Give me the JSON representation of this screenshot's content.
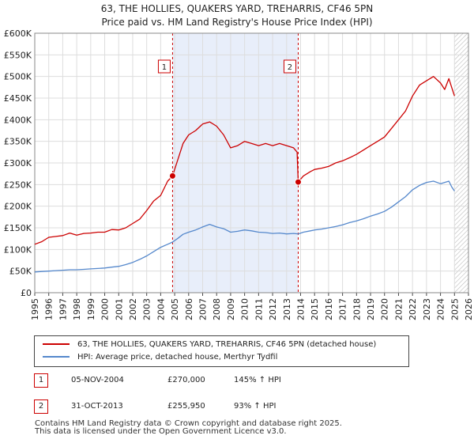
{
  "title": {
    "line1": "63, THE HOLLIES, QUAKERS YARD, TREHARRIS, CF46 5PN",
    "line2": "Price paid vs. HM Land Registry's House Price Index (HPI)"
  },
  "chart_data": {
    "type": "line",
    "xlim": [
      1995,
      2026
    ],
    "ylim": [
      0,
      600000
    ],
    "x_ticks": [
      "1995",
      "1996",
      "1997",
      "1998",
      "1999",
      "2000",
      "2001",
      "2002",
      "2003",
      "2004",
      "2005",
      "2006",
      "2007",
      "2008",
      "2009",
      "2010",
      "2011",
      "2012",
      "2013",
      "2014",
      "2015",
      "2016",
      "2017",
      "2018",
      "2019",
      "2020",
      "2021",
      "2022",
      "2023",
      "2024",
      "2025",
      "2026"
    ],
    "y_ticks": [
      {
        "value": 0,
        "label": "£0"
      },
      {
        "value": 50000,
        "label": "£50K"
      },
      {
        "value": 100000,
        "label": "£100K"
      },
      {
        "value": 150000,
        "label": "£150K"
      },
      {
        "value": 200000,
        "label": "£200K"
      },
      {
        "value": 250000,
        "label": "£250K"
      },
      {
        "value": 300000,
        "label": "£300K"
      },
      {
        "value": 350000,
        "label": "£350K"
      },
      {
        "value": 400000,
        "label": "£400K"
      },
      {
        "value": 450000,
        "label": "£450K"
      },
      {
        "value": 500000,
        "label": "£500K"
      },
      {
        "value": 550000,
        "label": "£550K"
      },
      {
        "value": 600000,
        "label": "£600K"
      }
    ],
    "shaded_period": [
      2004.85,
      2013.83
    ],
    "future_hatch_from": 2025.0,
    "series": [
      {
        "name": "63, THE HOLLIES, QUAKERS YARD, TREHARRIS, CF46 5PN (detached house)",
        "color": "#cc0000",
        "points": [
          [
            1995.0,
            112000
          ],
          [
            1995.5,
            118000
          ],
          [
            1996.0,
            128000
          ],
          [
            1996.5,
            130000
          ],
          [
            1997.0,
            132000
          ],
          [
            1997.5,
            138000
          ],
          [
            1998.0,
            133000
          ],
          [
            1998.5,
            137000
          ],
          [
            1999.0,
            138000
          ],
          [
            1999.5,
            140000
          ],
          [
            2000.0,
            140000
          ],
          [
            2000.5,
            146000
          ],
          [
            2001.0,
            145000
          ],
          [
            2001.5,
            150000
          ],
          [
            2002.0,
            160000
          ],
          [
            2002.5,
            170000
          ],
          [
            2003.0,
            190000
          ],
          [
            2003.5,
            212000
          ],
          [
            2004.0,
            225000
          ],
          [
            2004.5,
            258000
          ],
          [
            2004.85,
            270000
          ],
          [
            2005.2,
            305000
          ],
          [
            2005.6,
            345000
          ],
          [
            2006.0,
            365000
          ],
          [
            2006.5,
            375000
          ],
          [
            2007.0,
            390000
          ],
          [
            2007.5,
            395000
          ],
          [
            2008.0,
            385000
          ],
          [
            2008.5,
            365000
          ],
          [
            2009.0,
            335000
          ],
          [
            2009.5,
            340000
          ],
          [
            2010.0,
            350000
          ],
          [
            2010.5,
            345000
          ],
          [
            2011.0,
            340000
          ],
          [
            2011.5,
            345000
          ],
          [
            2012.0,
            340000
          ],
          [
            2012.5,
            345000
          ],
          [
            2013.0,
            340000
          ],
          [
            2013.5,
            335000
          ],
          [
            2013.75,
            325000
          ],
          [
            2013.83,
            255950
          ],
          [
            2014.2,
            270000
          ],
          [
            2014.7,
            280000
          ],
          [
            2015.0,
            285000
          ],
          [
            2015.5,
            288000
          ],
          [
            2016.0,
            292000
          ],
          [
            2016.5,
            300000
          ],
          [
            2017.0,
            305000
          ],
          [
            2017.5,
            312000
          ],
          [
            2018.0,
            320000
          ],
          [
            2018.5,
            330000
          ],
          [
            2019.0,
            340000
          ],
          [
            2019.5,
            350000
          ],
          [
            2020.0,
            360000
          ],
          [
            2020.5,
            380000
          ],
          [
            2021.0,
            400000
          ],
          [
            2021.5,
            420000
          ],
          [
            2022.0,
            455000
          ],
          [
            2022.5,
            480000
          ],
          [
            2023.0,
            490000
          ],
          [
            2023.5,
            500000
          ],
          [
            2024.0,
            485000
          ],
          [
            2024.3,
            470000
          ],
          [
            2024.6,
            495000
          ],
          [
            2024.8,
            475000
          ],
          [
            2025.0,
            455000
          ]
        ]
      },
      {
        "name": "HPI: Average price, detached house, Merthyr Tydfil",
        "color": "#5588cc",
        "points": [
          [
            1995.0,
            48000
          ],
          [
            1995.5,
            49000
          ],
          [
            1996.0,
            50000
          ],
          [
            1996.5,
            51000
          ],
          [
            1997.0,
            52000
          ],
          [
            1997.5,
            53000
          ],
          [
            1998.0,
            53000
          ],
          [
            1998.5,
            54000
          ],
          [
            1999.0,
            55000
          ],
          [
            1999.5,
            56000
          ],
          [
            2000.0,
            57000
          ],
          [
            2000.5,
            59000
          ],
          [
            2001.0,
            61000
          ],
          [
            2001.5,
            65000
          ],
          [
            2002.0,
            70000
          ],
          [
            2002.5,
            77000
          ],
          [
            2003.0,
            85000
          ],
          [
            2003.5,
            95000
          ],
          [
            2004.0,
            105000
          ],
          [
            2004.5,
            112000
          ],
          [
            2004.85,
            117000
          ],
          [
            2005.2,
            125000
          ],
          [
            2005.6,
            135000
          ],
          [
            2006.0,
            140000
          ],
          [
            2006.5,
            145000
          ],
          [
            2007.0,
            152000
          ],
          [
            2007.5,
            158000
          ],
          [
            2008.0,
            152000
          ],
          [
            2008.5,
            148000
          ],
          [
            2009.0,
            140000
          ],
          [
            2009.5,
            142000
          ],
          [
            2010.0,
            145000
          ],
          [
            2010.5,
            143000
          ],
          [
            2011.0,
            140000
          ],
          [
            2011.5,
            139000
          ],
          [
            2012.0,
            137000
          ],
          [
            2012.5,
            138000
          ],
          [
            2013.0,
            136000
          ],
          [
            2013.5,
            137000
          ],
          [
            2013.83,
            136000
          ],
          [
            2014.2,
            140000
          ],
          [
            2014.7,
            143000
          ],
          [
            2015.0,
            145000
          ],
          [
            2015.5,
            147000
          ],
          [
            2016.0,
            150000
          ],
          [
            2016.5,
            153000
          ],
          [
            2017.0,
            157000
          ],
          [
            2017.5,
            162000
          ],
          [
            2018.0,
            166000
          ],
          [
            2018.5,
            171000
          ],
          [
            2019.0,
            177000
          ],
          [
            2019.5,
            182000
          ],
          [
            2020.0,
            188000
          ],
          [
            2020.5,
            198000
          ],
          [
            2021.0,
            210000
          ],
          [
            2021.5,
            222000
          ],
          [
            2022.0,
            238000
          ],
          [
            2022.5,
            248000
          ],
          [
            2023.0,
            255000
          ],
          [
            2023.5,
            258000
          ],
          [
            2024.0,
            252000
          ],
          [
            2024.3,
            255000
          ],
          [
            2024.6,
            258000
          ],
          [
            2024.8,
            245000
          ],
          [
            2025.0,
            235000
          ]
        ]
      }
    ],
    "sales": [
      {
        "label": "1",
        "x": 2004.85,
        "price": 270000
      },
      {
        "label": "2",
        "x": 2013.83,
        "price": 255950
      }
    ]
  },
  "legend": {
    "items": [
      {
        "label": "63, THE HOLLIES, QUAKERS YARD, TREHARRIS, CF46 5PN (detached house)",
        "color": "#cc0000"
      },
      {
        "label": "HPI: Average price, detached house, Merthyr Tydfil",
        "color": "#5588cc"
      }
    ]
  },
  "transactions": [
    {
      "num": "1",
      "date": "05-NOV-2004",
      "price": "£270,000",
      "hpi": "145% ↑ HPI"
    },
    {
      "num": "2",
      "date": "31-OCT-2013",
      "price": "£255,950",
      "hpi": "93% ↑ HPI"
    }
  ],
  "footer": {
    "line1": "Contains HM Land Registry data © Crown copyright and database right 2025.",
    "line2": "This data is licensed under the Open Government Licence v3.0."
  }
}
